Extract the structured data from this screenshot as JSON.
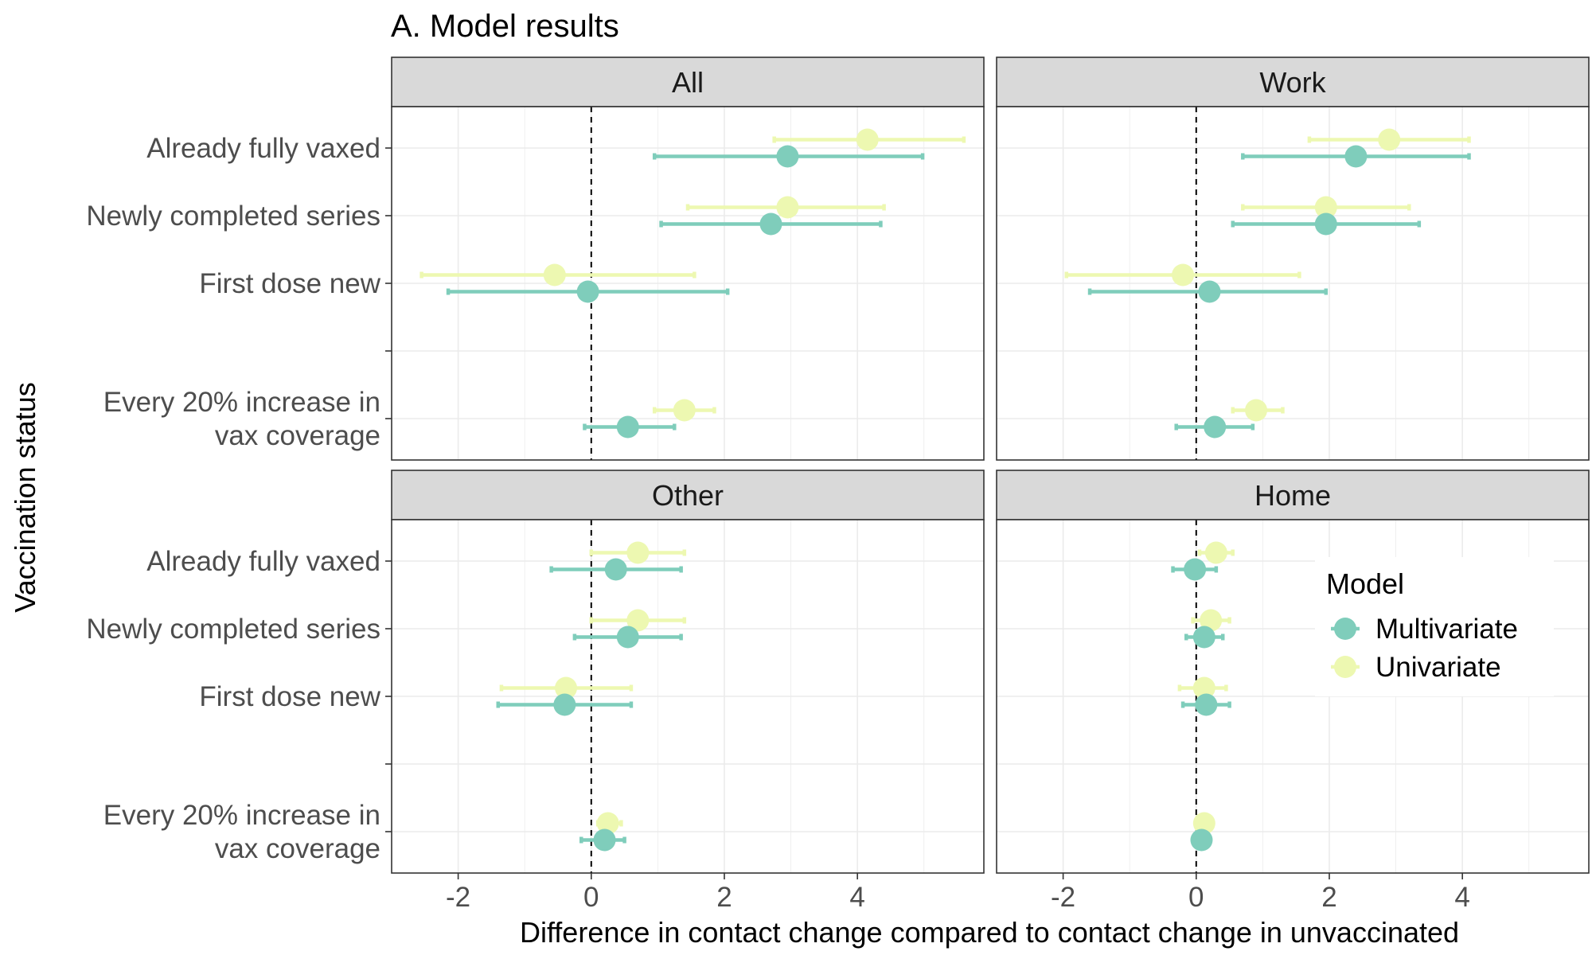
{
  "chart_data": {
    "type": "forest",
    "title": "A. Model results",
    "xlabel": "Difference in contact change compared to contact change in unvaccinated",
    "ylabel": "Vaccination status",
    "xlim": [
      -3,
      5.9
    ],
    "x_ticks": [
      -2,
      0,
      2,
      4
    ],
    "x_tick_labels": [
      "-2",
      "0",
      "2",
      "4"
    ],
    "reference_line_x": 0,
    "grid": true,
    "legend": {
      "title": "Model",
      "placement": "right",
      "entries": [
        "Multivariate",
        "Univariate"
      ]
    },
    "categories": [
      "Already fully vaxed",
      "Newly completed series",
      "First dose new",
      "",
      "Every 20% increase in\nvax coverage"
    ],
    "category_lines": [
      [
        "Already fully vaxed"
      ],
      [
        "Newly completed series"
      ],
      [
        "First dose new"
      ],
      [],
      [
        "Every 20% increase in",
        "vax coverage"
      ]
    ],
    "colors": {
      "Multivariate": "#7fcdbb",
      "Univariate": "#edf8b1"
    },
    "panels": [
      {
        "name": "All",
        "series": [
          {
            "name": "Multivariate",
            "points": [
              {
                "category": "Already fully vaxed",
                "estimate": 2.95,
                "lower": 0.95,
                "upper": 4.98
              },
              {
                "category": "Newly completed series",
                "estimate": 2.7,
                "lower": 1.05,
                "upper": 4.35
              },
              {
                "category": "First dose new",
                "estimate": -0.05,
                "lower": -2.15,
                "upper": 2.05
              },
              {
                "category": "Every 20% increase in\nvax coverage",
                "estimate": 0.55,
                "lower": -0.1,
                "upper": 1.25
              }
            ]
          },
          {
            "name": "Univariate",
            "points": [
              {
                "category": "Already fully vaxed",
                "estimate": 4.15,
                "lower": 2.75,
                "upper": 5.6
              },
              {
                "category": "Newly completed series",
                "estimate": 2.95,
                "lower": 1.45,
                "upper": 4.4
              },
              {
                "category": "First dose new",
                "estimate": -0.55,
                "lower": -2.55,
                "upper": 1.55
              },
              {
                "category": "Every 20% increase in\nvax coverage",
                "estimate": 1.4,
                "lower": 0.95,
                "upper": 1.85
              }
            ]
          }
        ]
      },
      {
        "name": "Work",
        "series": [
          {
            "name": "Multivariate",
            "points": [
              {
                "category": "Already fully vaxed",
                "estimate": 2.4,
                "lower": 0.7,
                "upper": 4.1
              },
              {
                "category": "Newly completed series",
                "estimate": 1.95,
                "lower": 0.55,
                "upper": 3.35
              },
              {
                "category": "First dose new",
                "estimate": 0.2,
                "lower": -1.6,
                "upper": 1.95
              },
              {
                "category": "Every 20% increase in\nvax coverage",
                "estimate": 0.28,
                "lower": -0.3,
                "upper": 0.85
              }
            ]
          },
          {
            "name": "Univariate",
            "points": [
              {
                "category": "Already fully vaxed",
                "estimate": 2.9,
                "lower": 1.7,
                "upper": 4.1
              },
              {
                "category": "Newly completed series",
                "estimate": 1.95,
                "lower": 0.7,
                "upper": 3.2
              },
              {
                "category": "First dose new",
                "estimate": -0.2,
                "lower": -1.95,
                "upper": 1.55
              },
              {
                "category": "Every 20% increase in\nvax coverage",
                "estimate": 0.9,
                "lower": 0.55,
                "upper": 1.3
              }
            ]
          }
        ]
      },
      {
        "name": "Other",
        "series": [
          {
            "name": "Multivariate",
            "points": [
              {
                "category": "Already fully vaxed",
                "estimate": 0.37,
                "lower": -0.6,
                "upper": 1.35
              },
              {
                "category": "Newly completed series",
                "estimate": 0.55,
                "lower": -0.25,
                "upper": 1.35
              },
              {
                "category": "First dose new",
                "estimate": -0.4,
                "lower": -1.4,
                "upper": 0.6
              },
              {
                "category": "Every 20% increase in\nvax coverage",
                "estimate": 0.2,
                "lower": -0.15,
                "upper": 0.5
              }
            ]
          },
          {
            "name": "Univariate",
            "points": [
              {
                "category": "Already fully vaxed",
                "estimate": 0.7,
                "lower": 0.0,
                "upper": 1.4
              },
              {
                "category": "Newly completed series",
                "estimate": 0.7,
                "lower": 0.0,
                "upper": 1.4
              },
              {
                "category": "First dose new",
                "estimate": -0.38,
                "lower": -1.35,
                "upper": 0.6
              },
              {
                "category": "Every 20% increase in\nvax coverage",
                "estimate": 0.25,
                "lower": 0.1,
                "upper": 0.45
              }
            ]
          }
        ]
      },
      {
        "name": "Home",
        "series": [
          {
            "name": "Multivariate",
            "points": [
              {
                "category": "Already fully vaxed",
                "estimate": -0.02,
                "lower": -0.35,
                "upper": 0.3
              },
              {
                "category": "Newly completed series",
                "estimate": 0.12,
                "lower": -0.15,
                "upper": 0.4
              },
              {
                "category": "First dose new",
                "estimate": 0.15,
                "lower": -0.2,
                "upper": 0.5
              },
              {
                "category": "Every 20% increase in\nvax coverage",
                "estimate": 0.08,
                "lower": -0.05,
                "upper": 0.2
              }
            ]
          },
          {
            "name": "Univariate",
            "points": [
              {
                "category": "Already fully vaxed",
                "estimate": 0.3,
                "lower": 0.05,
                "upper": 0.55
              },
              {
                "category": "Newly completed series",
                "estimate": 0.22,
                "lower": -0.05,
                "upper": 0.5
              },
              {
                "category": "First dose new",
                "estimate": 0.12,
                "lower": -0.25,
                "upper": 0.45
              },
              {
                "category": "Every 20% increase in\nvax coverage",
                "estimate": 0.12,
                "lower": 0.0,
                "upper": 0.25
              }
            ]
          }
        ]
      }
    ]
  }
}
